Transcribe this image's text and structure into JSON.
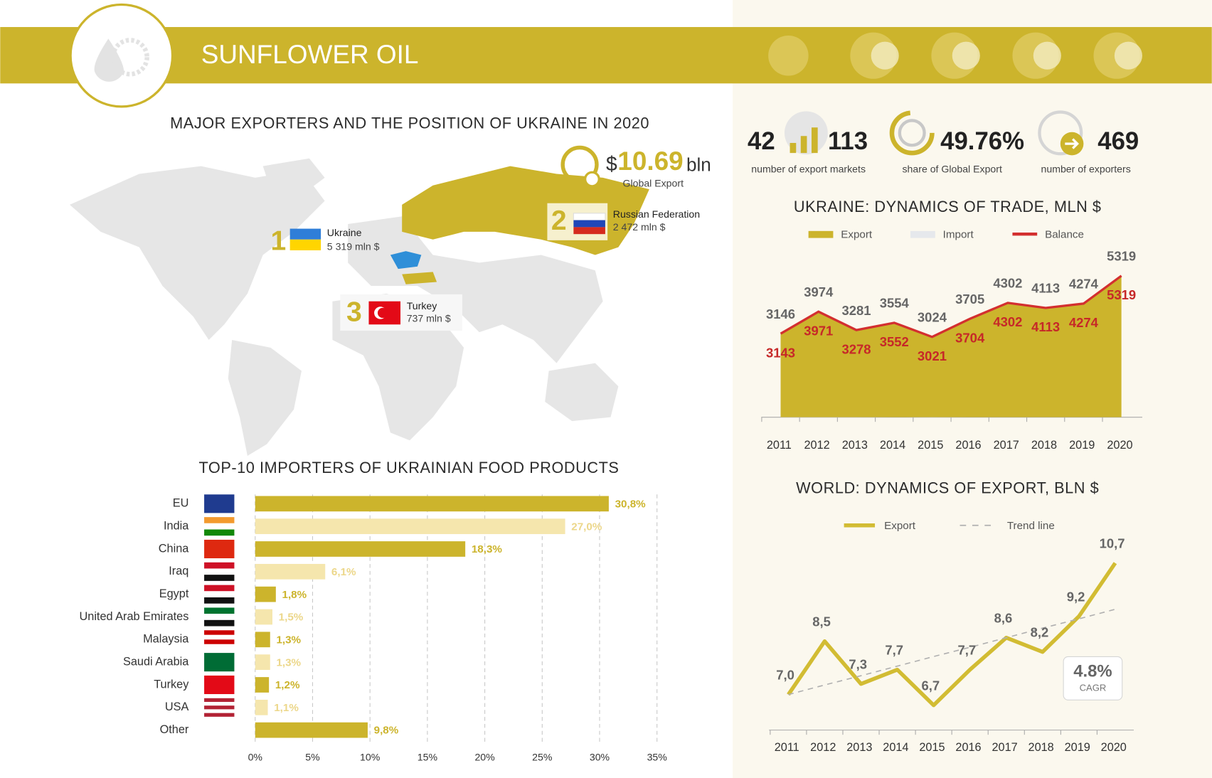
{
  "header": {
    "title": "SUNFLOWER OIL"
  },
  "map": {
    "title": "MAJOR EXPORTERS AND THE POSITION OF UKRAINE IN 2020",
    "global_export": {
      "currency": "$",
      "amount": "10.69",
      "unit": "bln",
      "label": "Global Export"
    },
    "exporters": [
      {
        "rank": "1",
        "name": "Ukraine",
        "value": "5 319 mln $"
      },
      {
        "rank": "2",
        "name": "Russian Federation",
        "value": "2 472 mln $"
      },
      {
        "rank": "3",
        "name": "Turkey",
        "value": "737 mln $"
      }
    ]
  },
  "stats": [
    {
      "value": "42",
      "value2": "113",
      "label": "number of export markets"
    },
    {
      "value": "49.76%",
      "label": "share of Global Export"
    },
    {
      "value": "469",
      "label": "number of exporters"
    }
  ],
  "chart_data": [
    {
      "type": "bar",
      "orientation": "horizontal",
      "title": "TOP-10 IMPORTERS OF UKRAINIAN FOOD PRODUCTS",
      "categories": [
        "EU",
        "India",
        "China",
        "Iraq",
        "Egypt",
        "United Arab Emirates",
        "Malaysia",
        "Saudi Arabia",
        "Turkey",
        "USA",
        "Other"
      ],
      "values": [
        30.8,
        27.0,
        18.3,
        6.1,
        1.8,
        1.5,
        1.3,
        1.3,
        1.2,
        1.1,
        9.8
      ],
      "value_labels": [
        "30,8%",
        "27,0%",
        "18,3%",
        "6,1%",
        "1,8%",
        "1,5%",
        "1,3%",
        "1,3%",
        "1,2%",
        "1,1%",
        "9,8%"
      ],
      "colors": [
        "#ccb42c",
        "#f5e6ad",
        "#ccb42c",
        "#f5e6ad",
        "#ccb42c",
        "#f5e6ad",
        "#ccb42c",
        "#f5e6ad",
        "#ccb42c",
        "#f5e6ad",
        "#ccb42c"
      ],
      "xlim": [
        0,
        35
      ],
      "xticks": [
        {
          "value": 0,
          "label": "0%"
        },
        {
          "value": 5,
          "label": "5%"
        },
        {
          "value": 10,
          "label": "10%"
        },
        {
          "value": 15,
          "label": "15%"
        },
        {
          "value": 20,
          "label": "20%"
        },
        {
          "value": 25,
          "label": "25%"
        },
        {
          "value": 30,
          "label": "30%"
        },
        {
          "value": 35,
          "label": "35%"
        }
      ],
      "grid": true
    },
    {
      "type": "area",
      "title": "UKRAINE: DYNAMICS OF TRADE, MLN $",
      "categories": [
        "2011",
        "2012",
        "2013",
        "2014",
        "2015",
        "2016",
        "2017",
        "2018",
        "2019",
        "2020"
      ],
      "series": [
        {
          "name": "Export",
          "mark": "area",
          "color": "#ccb42c",
          "values": [
            3146,
            3974,
            3281,
            3554,
            3024,
            3705,
            4302,
            4113,
            4274,
            5319
          ]
        },
        {
          "name": "Import",
          "mark": "area",
          "color": "#e6e8ec",
          "values": [
            3,
            3,
            3,
            2,
            3,
            1,
            0,
            0,
            0,
            0
          ]
        },
        {
          "name": "Balance",
          "mark": "line",
          "color": "#d32f2f",
          "values": [
            3143,
            3971,
            3278,
            3552,
            3021,
            3704,
            4302,
            4113,
            4274,
            5319
          ]
        }
      ],
      "ylim": [
        0,
        6000
      ]
    },
    {
      "type": "line",
      "title": "WORLD: DYNAMICS OF EXPORT, BLN $",
      "categories": [
        "2011",
        "2012",
        "2013",
        "2014",
        "2015",
        "2016",
        "2017",
        "2018",
        "2019",
        "2020"
      ],
      "series": [
        {
          "name": "Export",
          "line_style": "solid",
          "color": "#d2bc33",
          "values": [
            7.0,
            8.5,
            7.3,
            7.7,
            6.7,
            7.7,
            8.6,
            8.2,
            9.2,
            10.7
          ],
          "value_labels": [
            "7,0",
            "8,5",
            "7,3",
            "7,7",
            "6,7",
            "7,7",
            "8,6",
            "8,2",
            "9,2",
            "10,7"
          ]
        },
        {
          "name": "Trend line",
          "line_style": "dashed",
          "color": "#b0b0b0",
          "values": [
            7.0,
            7.27,
            7.53,
            7.8,
            8.07,
            8.33,
            8.6,
            8.87,
            9.13,
            9.4
          ]
        }
      ],
      "ylim": [
        6,
        11
      ],
      "annotation": {
        "value": "4.8%",
        "label": "CAGR"
      }
    }
  ]
}
